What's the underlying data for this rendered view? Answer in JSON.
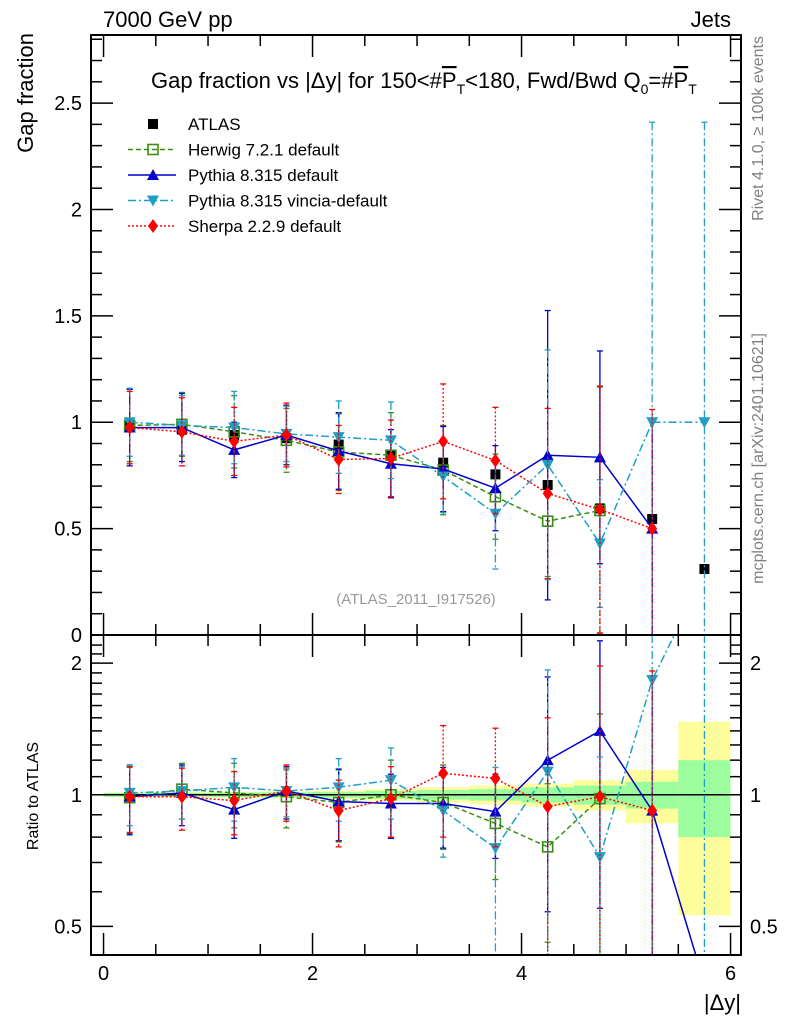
{
  "header": {
    "left_label": "7000 GeV pp",
    "right_label": "Jets"
  },
  "side_labels": {
    "rivet": "Rivet 4.1.0, ≥ 100k events",
    "mcplots": "mcplots.cern.ch [arXiv:2401.10621]"
  },
  "chart_data": [
    {
      "type": "line",
      "panel": "main",
      "title": "Gap fraction vs |Δy| for 150<#P̅T<180, Fwd/Bwd Q0=#P̅T",
      "title_parts": {
        "pre": "Gap fraction vs |Δy| for 150<#",
        "p1": "P",
        "sub1": "T",
        "mid": "<180, Fwd/Bwd Q",
        "sub0": "0",
        "eq": "=#",
        "p2": "P",
        "sub2": "T"
      },
      "xlabel": "|Δy|",
      "ylabel": "Gap fraction",
      "xlim": [
        -0.12,
        6.1
      ],
      "ylim": [
        0,
        2.82
      ],
      "yticks": [
        0,
        0.5,
        1,
        1.5,
        2,
        2.5
      ],
      "ytick_labels": [
        "0",
        "0.5",
        "1",
        "1.5",
        "2",
        "2.5"
      ],
      "xticks": [
        0,
        2,
        4,
        6
      ],
      "xtick_labels": [
        "0",
        "2",
        "4",
        "6"
      ],
      "watermark": "(ATLAS_2011_I917526)",
      "x": [
        0.25,
        0.75,
        1.25,
        1.75,
        2.25,
        2.75,
        3.25,
        3.75,
        4.25,
        4.75,
        5.25,
        5.75
      ],
      "series": [
        {
          "name": "ATLAS",
          "color": "#000000",
          "marker": "square",
          "line": "none",
          "values": [
            0.985,
            0.965,
            0.94,
            0.925,
            0.895,
            0.845,
            0.81,
            0.755,
            0.705,
            0.595,
            0.545,
            0.31
          ],
          "err": [
            0.01,
            0.01,
            0.01,
            0.01,
            0.01,
            0.01,
            0.01,
            0.01,
            0.01,
            0.01,
            0.01,
            0.01
          ]
        },
        {
          "name": "Herwig 7.2.1 default",
          "color": "#3a8f12",
          "marker": "open-square",
          "line": "dashed",
          "values": [
            0.985,
            0.99,
            0.955,
            0.915,
            0.86,
            0.845,
            0.775,
            0.65,
            0.535,
            0.585,
            null,
            null
          ],
          "err": [
            0.17,
            0.15,
            0.17,
            0.15,
            0.18,
            0.2,
            0.21,
            0.2,
            0.26,
            0.58,
            null,
            null
          ]
        },
        {
          "name": "Pythia 8.315 default",
          "color": "#0000cc",
          "marker": "triangle-up",
          "line": "solid",
          "values": [
            0.975,
            0.975,
            0.87,
            0.94,
            0.865,
            0.805,
            0.78,
            0.69,
            0.845,
            0.835,
            0.5,
            null
          ],
          "err": [
            0.18,
            0.16,
            0.13,
            0.14,
            0.18,
            0.16,
            0.2,
            0.2,
            0.68,
            0.5,
            0.5,
            null
          ]
        },
        {
          "name": "Pythia 8.315 vincia-default",
          "color": "#1f9fc6",
          "marker": "triangle-down",
          "line": "dashdot",
          "values": [
            1.0,
            0.985,
            0.975,
            0.945,
            0.93,
            0.915,
            0.745,
            0.57,
            0.8,
            0.43,
            1.0,
            1.0
          ],
          "err": [
            0.16,
            0.14,
            0.17,
            0.13,
            0.17,
            0.18,
            0.17,
            0.26,
            0.54,
            0.3,
            1.41,
            1.41
          ]
        },
        {
          "name": "Sherpa 2.2.9 default",
          "color": "#ff0000",
          "marker": "diamond",
          "line": "dotted",
          "values": [
            0.975,
            0.955,
            0.91,
            0.94,
            0.825,
            0.83,
            0.91,
            0.82,
            0.665,
            0.59,
            0.5,
            null
          ],
          "err": [
            0.17,
            0.16,
            0.16,
            0.15,
            0.16,
            0.18,
            0.27,
            0.25,
            0.4,
            0.58,
            0.56,
            null
          ]
        }
      ],
      "legend": {
        "position": "top-left",
        "entries": [
          "ATLAS",
          "Herwig 7.2.1 default",
          "Pythia 8.315 default",
          "Pythia 8.315 vincia-default",
          "Sherpa 2.2.9 default"
        ]
      },
      "grid": false
    },
    {
      "type": "line",
      "panel": "ratio",
      "ylabel": "Ratio to ATLAS",
      "xlabel": "|Δy|",
      "yscale": "log",
      "ylim": [
        0.43,
        2.32
      ],
      "yticks": [
        0.5,
        1,
        2
      ],
      "ytick_labels": [
        "0.5",
        "1",
        "2"
      ],
      "xticks": [
        0,
        2,
        4,
        6
      ],
      "xtick_labels": [
        "0",
        "2",
        "4",
        "6"
      ],
      "bands": {
        "edges": [
          0,
          0.5,
          1,
          1.5,
          2,
          2.5,
          3,
          3.5,
          4,
          4.5,
          5,
          5.5,
          6
        ],
        "stat": [
          0.01,
          0.01,
          0.012,
          0.013,
          0.015,
          0.02,
          0.025,
          0.03,
          0.04,
          0.05,
          0.07,
          0.2
        ],
        "total": [
          0.012,
          0.012,
          0.015,
          0.018,
          0.022,
          0.03,
          0.04,
          0.05,
          0.06,
          0.08,
          0.14,
          0.47
        ],
        "stat_color": "#9cfd9c",
        "total_color": "#fdfd9c"
      },
      "x": [
        0.25,
        0.75,
        1.25,
        1.75,
        2.25,
        2.75,
        3.25,
        3.75,
        4.25,
        4.75,
        5.25,
        5.75
      ],
      "series": [
        {
          "name": "Herwig 7.2.1 default",
          "values": [
            0.985,
            1.03,
            1.01,
            0.99,
            0.96,
            1.0,
            0.96,
            0.86,
            0.76,
            0.98,
            null,
            null
          ],
          "err": [
            0.17,
            0.15,
            0.17,
            0.15,
            0.18,
            0.2,
            0.21,
            0.22,
            0.3,
            0.55,
            null,
            null
          ]
        },
        {
          "name": "Pythia 8.315 default",
          "values": [
            0.99,
            1.01,
            0.925,
            1.02,
            0.965,
            0.955,
            0.955,
            0.915,
            1.2,
            1.4,
            0.92,
            0.37
          ],
          "err": [
            0.18,
            0.16,
            0.13,
            0.14,
            0.18,
            0.16,
            0.2,
            0.2,
            0.66,
            0.85,
            0.92,
            null
          ]
        },
        {
          "name": "Pythia 8.315 vincia-default",
          "values": [
            1.01,
            1.02,
            1.04,
            1.02,
            1.04,
            1.08,
            0.92,
            0.755,
            1.13,
            0.72,
            1.83,
            3.2
          ],
          "err": [
            0.16,
            0.14,
            0.17,
            0.13,
            0.17,
            0.2,
            0.2,
            0.4,
            0.8,
            0.5,
            2.6,
            4.5
          ]
        },
        {
          "name": "Sherpa 2.2.9 default",
          "values": [
            0.99,
            0.99,
            0.97,
            1.02,
            0.92,
            0.98,
            1.12,
            1.09,
            0.94,
            0.99,
            0.92,
            null
          ],
          "err": [
            0.17,
            0.16,
            0.16,
            0.15,
            0.16,
            0.18,
            0.32,
            0.33,
            0.56,
            0.98,
            1.0,
            null
          ]
        }
      ]
    }
  ]
}
